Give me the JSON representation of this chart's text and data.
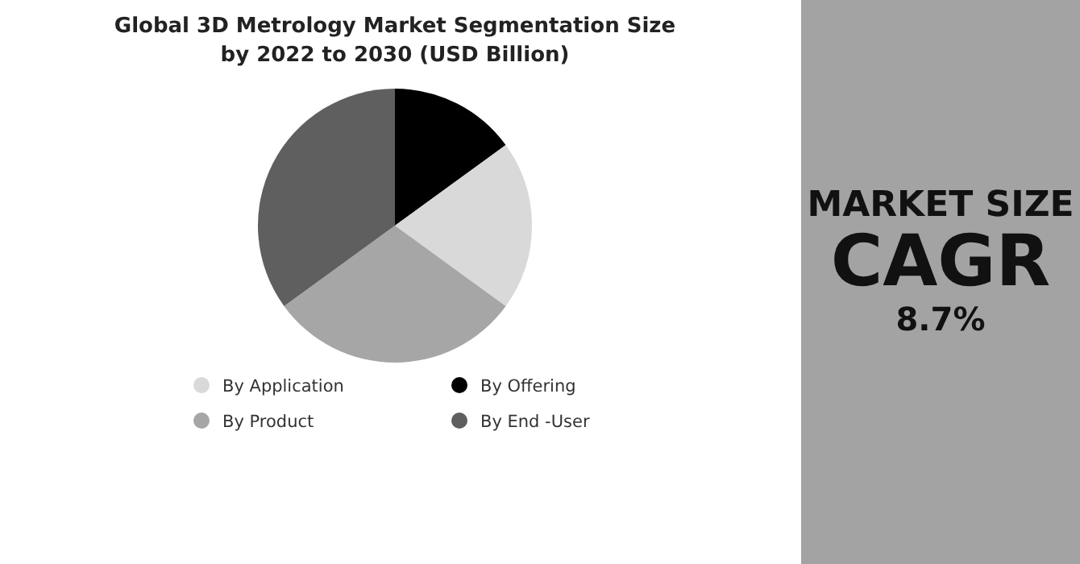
{
  "chart_data": {
    "type": "pie",
    "title": "Global 3D Metrology Market Segmentation Size by 2022 to 2030 (USD Billion)",
    "categories": [
      "By Offering",
      "By Application",
      "By Product",
      "By End -User"
    ],
    "values": [
      15,
      20,
      30,
      35
    ],
    "colors": [
      "#000000",
      "#d9d9d9",
      "#a6a6a6",
      "#5f5f5f"
    ],
    "legend": "bottom",
    "annotations": [
      "MARKET SIZE",
      "CAGR",
      "8.7%"
    ]
  }
}
